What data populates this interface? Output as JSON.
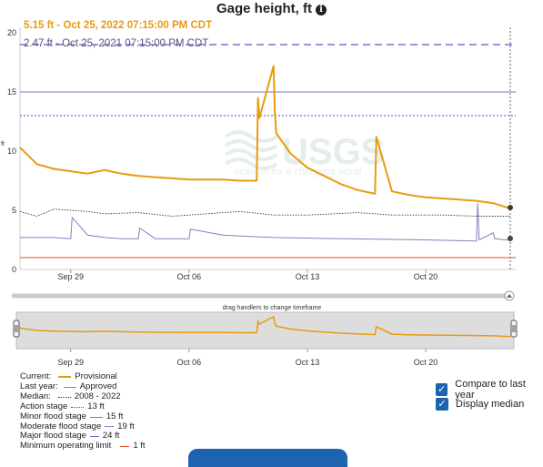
{
  "title": "Gage height, ft",
  "info_icon": "info-icon",
  "readouts": {
    "current": "5.15 ft - Oct 25, 2022 07:15:00 PM CDT",
    "last_year": "2.47 ft - Oct 25, 2021 07:15:00 PM CDT"
  },
  "navigator_label": "drag handlers to change timeframe",
  "legend": {
    "current_label": "Current:",
    "current_value": "Provisional",
    "last_year_label": "Last year:",
    "last_year_value": "Approved",
    "median_label": "Median:",
    "median_value": "2008 - 2022",
    "action_label": "Action stage",
    "action_value": "13 ft",
    "minor_label": "Minor flood stage",
    "minor_value": "15 ft",
    "moderate_label": "Moderate flood stage",
    "moderate_value": "19 ft",
    "major_label": "Major flood stage",
    "major_value": "24 ft",
    "min_op_label": "Minimum operating limit",
    "min_op_value": "1 ft"
  },
  "options": {
    "compare_label": "Compare to last year",
    "compare_checked": true,
    "median_label": "Display median",
    "median_checked": true
  },
  "colors": {
    "current": "#e89b10",
    "last_year": "#8080c0",
    "median": "#333333",
    "action": "#3a50c8",
    "minor": "#6a78d8",
    "moderate": "#6a78d8",
    "min_op": "#d9531e",
    "accent": "#1e63b0"
  },
  "chart_data": {
    "type": "line",
    "ylabel": "ft",
    "x_ticks": [
      "Sep 29",
      "Oct 06",
      "Oct 13",
      "Oct 20"
    ],
    "y_ticks": [
      0,
      5,
      10,
      15,
      20
    ],
    "ylim": [
      0,
      20
    ],
    "x_domain": [
      "Sep 26",
      "Oct 25"
    ],
    "grid": false,
    "series": [
      {
        "name": "Provisional",
        "x": [
          "Sep 26",
          "Sep 27",
          "Sep 28",
          "Sep 29",
          "Sep 30",
          "Oct 01",
          "Oct 02",
          "Oct 03",
          "Oct 04",
          "Oct 05",
          "Oct 06",
          "Oct 07",
          "Oct 08",
          "Oct 09",
          "Oct 10",
          "Oct 10",
          "Oct 10",
          "Oct 11",
          "Oct 11",
          "Oct 11",
          "Oct 12",
          "Oct 13",
          "Oct 14",
          "Oct 15",
          "Oct 16",
          "Oct 17",
          "Oct 17",
          "Oct 18",
          "Oct 19",
          "Oct 20",
          "Oct 21",
          "Oct 22",
          "Oct 23",
          "Oct 24",
          "Oct 25"
        ],
        "values": [
          10.3,
          8.9,
          8.5,
          8.3,
          8.1,
          8.4,
          8.1,
          7.9,
          7.8,
          7.7,
          7.6,
          7.6,
          7.6,
          7.5,
          7.5,
          14.5,
          12.8,
          17.2,
          13.0,
          11.5,
          9.8,
          8.6,
          7.9,
          7.2,
          6.7,
          6.4,
          11.2,
          6.6,
          6.3,
          6.1,
          6.0,
          5.9,
          5.8,
          5.6,
          5.15
        ]
      },
      {
        "name": "Approved",
        "x": [
          "Sep 26",
          "Sep 28",
          "Sep 29",
          "Sep 29",
          "Sep 30",
          "Oct 01",
          "Oct 02",
          "Oct 03",
          "Oct 03",
          "Oct 04",
          "Oct 06",
          "Oct 06",
          "Oct 08",
          "Oct 11",
          "Oct 15",
          "Oct 20",
          "Oct 23",
          "Oct 23",
          "Oct 23",
          "Oct 24",
          "Oct 24",
          "Oct 25"
        ],
        "values": [
          2.7,
          2.7,
          2.6,
          4.4,
          2.9,
          2.7,
          2.6,
          2.6,
          3.5,
          2.6,
          2.6,
          3.4,
          2.9,
          2.7,
          2.6,
          2.5,
          2.4,
          5.6,
          2.5,
          3.1,
          2.6,
          2.47
        ]
      },
      {
        "name": "2008 - 2022",
        "x": [
          "Sep 26",
          "Sep 27",
          "Sep 28",
          "Sep 30",
          "Oct 01",
          "Oct 03",
          "Oct 05",
          "Oct 07",
          "Oct 09",
          "Oct 11",
          "Oct 13",
          "Oct 16",
          "Oct 18",
          "Oct 21",
          "Oct 23",
          "Oct 25"
        ],
        "values": [
          4.9,
          4.5,
          5.1,
          4.9,
          4.7,
          4.8,
          4.5,
          4.7,
          4.9,
          4.6,
          4.6,
          4.8,
          4.6,
          4.6,
          4.5,
          4.5
        ]
      }
    ],
    "thresholds": [
      {
        "name": "Action stage",
        "value": 13
      },
      {
        "name": "Minor flood stage",
        "value": 15
      },
      {
        "name": "Moderate flood stage",
        "value": 19
      },
      {
        "name": "Major flood stage",
        "value": 24
      },
      {
        "name": "Minimum operating limit",
        "value": 1
      }
    ]
  }
}
